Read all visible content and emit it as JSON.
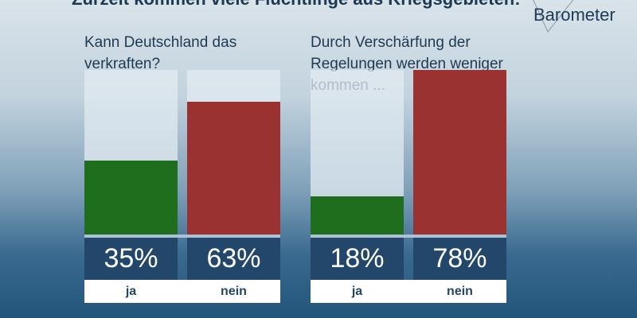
{
  "header": {
    "title": "Zurzeit kommen viele Flüchtlinge aus Kriegsgebieten:",
    "logo": "Barometer"
  },
  "colors": {
    "ja": "#1e6e1e",
    "nein": "#9a3232",
    "value_box": "#23476a"
  },
  "chart_data": [
    {
      "type": "bar",
      "title": "Kann Deutschland das verkraften?",
      "categories": [
        "ja",
        "nein"
      ],
      "values": [
        35,
        63
      ],
      "value_labels": [
        "35%",
        "63%"
      ],
      "ylim": [
        0,
        100
      ]
    },
    {
      "type": "bar",
      "title": "Durch Verschärfung der Regelungen werden weniger kommen ...",
      "categories": [
        "ja",
        "nein"
      ],
      "values": [
        18,
        78
      ],
      "value_labels": [
        "18%",
        "78%"
      ],
      "ylim": [
        0,
        100
      ]
    }
  ]
}
